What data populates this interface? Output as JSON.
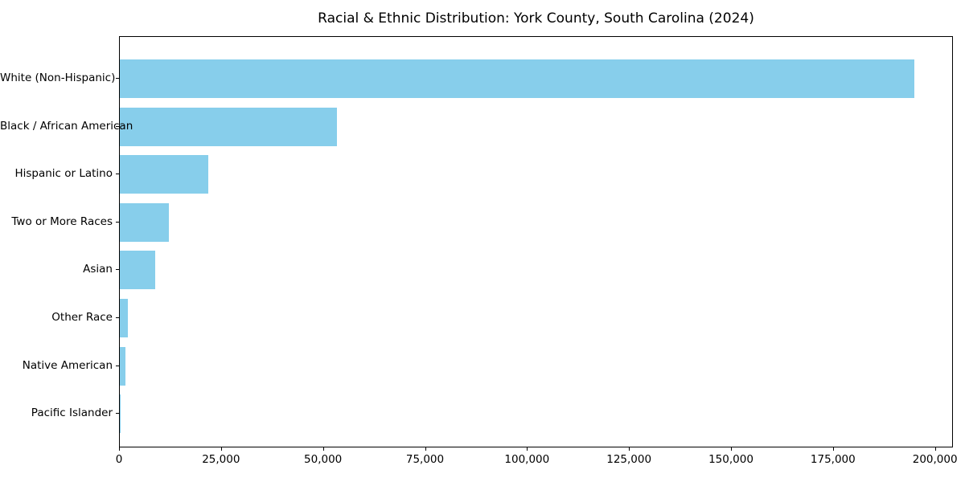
{
  "page": {
    "background_color": "#ffffff",
    "text_color": "#000000"
  },
  "chart_data": {
    "type": "bar",
    "orientation": "horizontal",
    "title": "Racial & Ethnic Distribution: York County, South Carolina (2024)",
    "categories": [
      "White (Non-Hispanic)",
      "Black / African American",
      "Hispanic or Latino",
      "Two or More Races",
      "Asian",
      "Other Race",
      "Native American",
      "Pacific Islander"
    ],
    "values": [
      194700,
      53200,
      21700,
      12100,
      8700,
      2000,
      1400,
      150
    ],
    "bar_color": "#87CEEB",
    "xlabel": "",
    "ylabel": "",
    "xlim": [
      0,
      204400
    ],
    "x_ticks": [
      0,
      25000,
      50000,
      75000,
      100000,
      125000,
      150000,
      175000,
      200000
    ],
    "x_tick_labels": [
      "0",
      "25,000",
      "50,000",
      "75,000",
      "100,000",
      "125,000",
      "150,000",
      "175,000",
      "200,000"
    ],
    "grid": false,
    "legend": "none",
    "frame": "full-box"
  }
}
